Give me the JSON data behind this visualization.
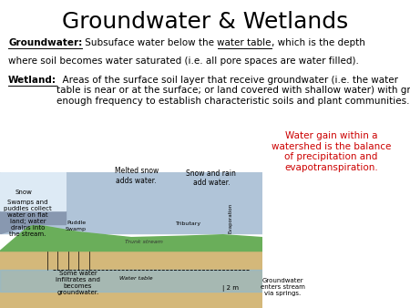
{
  "title": "Groundwater & Wetlands",
  "title_fontsize": 18,
  "background_color": "#ffffff",
  "groundwater_label": "Groundwater:",
  "groundwater_text": " Subsuface water below the ",
  "groundwater_underline": "water table",
  "groundwater_rest": ", which is the depth",
  "groundwater_line2": "where soil becomes water saturated (i.e. all pore spaces are water filled).",
  "wetland_label": "Wetland:",
  "wetland_text": "  Areas of the surface soil layer that receive groundwater (i.e. the water\ntable is near or at the surface; or land covered with shallow water) with great\nenough frequency to establish characteristic soils and plant communities.",
  "box_text": "Water gain within a\nwatershed is the balance\nof precipitation and\nevapotranspiration.",
  "box_color": "#cc0000",
  "box_bg": "#ffffff"
}
